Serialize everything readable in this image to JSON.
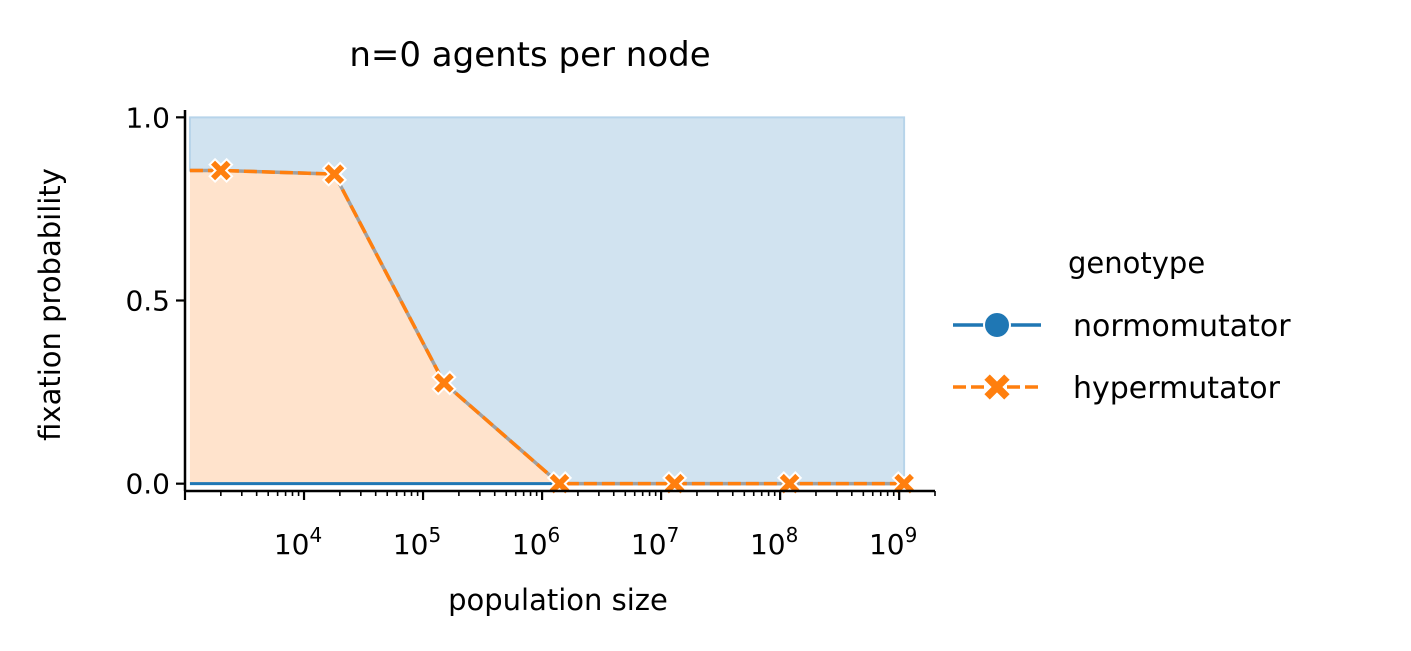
{
  "chart_data": {
    "type": "line",
    "title": "n=0 agents per node",
    "xlabel": "population size",
    "ylabel": "fixation probability",
    "xscale": "log",
    "xlim": [
      1000,
      2000000000
    ],
    "ylim": [
      -0.02,
      1.02
    ],
    "x_major_ticks": [
      10000,
      100000,
      1000000,
      10000000,
      100000000,
      1000000000
    ],
    "x_tick_labels": [
      {
        "base": "10",
        "exp": "4"
      },
      {
        "base": "10",
        "exp": "5"
      },
      {
        "base": "10",
        "exp": "6"
      },
      {
        "base": "10",
        "exp": "7"
      },
      {
        "base": "10",
        "exp": "8"
      },
      {
        "base": "10",
        "exp": "9"
      }
    ],
    "y_ticks": [
      0.0,
      0.5,
      1.0
    ],
    "y_tick_labels": [
      "0.0",
      "0.5",
      "1.0"
    ],
    "stacked_area": true,
    "grid": false,
    "legend": {
      "title": "genotype",
      "placement": "right, outside"
    },
    "x": [
      1100,
      2000,
      18000,
      150000,
      1400000,
      13000000,
      120000000,
      1100000000
    ],
    "series": [
      {
        "name": "normomutator",
        "color": "#1f77b4",
        "fill_color": "#d1e3f0",
        "marker": "circle",
        "linestyle": "solid",
        "values": [
          0.0,
          0.0,
          0.0,
          0.0,
          0.0,
          0.0,
          0.0,
          0.0
        ]
      },
      {
        "name": "hypermutator",
        "color": "#ff7f0e",
        "fill_color": "#ffe3cc",
        "marker": "x",
        "linestyle": "dashed",
        "values": [
          0.855,
          0.855,
          0.845,
          0.275,
          0.0,
          0.0,
          0.0,
          0.0
        ]
      }
    ]
  }
}
